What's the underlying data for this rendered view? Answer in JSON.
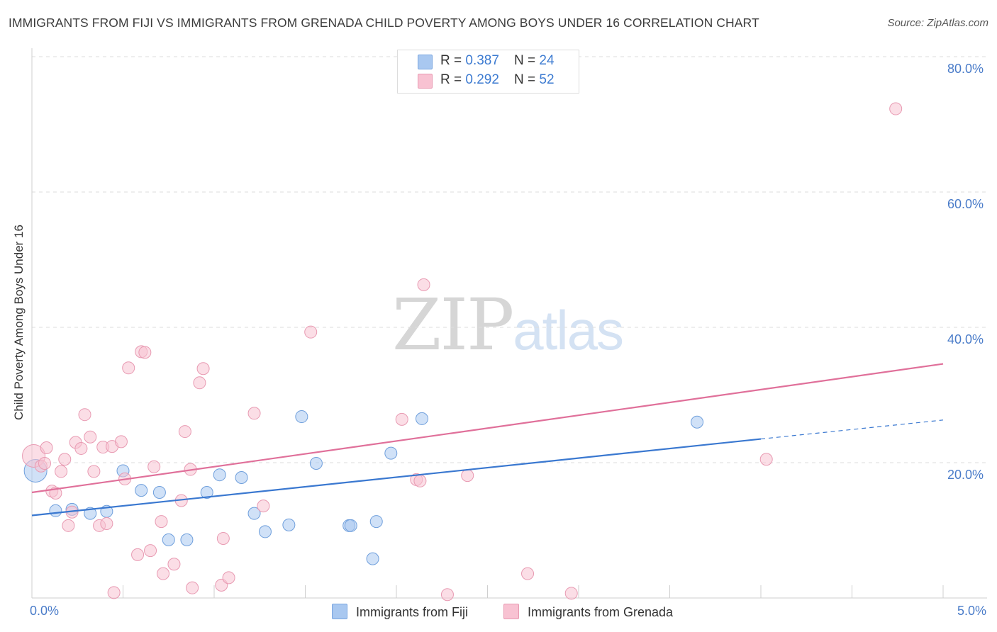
{
  "title": "IMMIGRANTS FROM FIJI VS IMMIGRANTS FROM GRENADA CHILD POVERTY AMONG BOYS UNDER 16 CORRELATION CHART",
  "source": "Source: ZipAtlas.com",
  "watermark": {
    "zip": "ZIP",
    "atlas": "atlas"
  },
  "legend_top": [
    {
      "r_label": "R = ",
      "r_value": "0.387",
      "n_label": "N = ",
      "n_value": "24",
      "color": "#a9c8f0",
      "border": "#7aa6e0"
    },
    {
      "r_label": "R = ",
      "r_value": "0.292",
      "n_label": "N = ",
      "n_value": "52",
      "color": "#f8c2d2",
      "border": "#e89ab2"
    }
  ],
  "legend_bottom": [
    {
      "label": "Immigrants from Fiji",
      "color": "#a9c8f0",
      "border": "#7aa6e0"
    },
    {
      "label": "Immigrants from Grenada",
      "color": "#f8c2d2",
      "border": "#e89ab2"
    }
  ],
  "chart_data": {
    "type": "scatter",
    "title": "IMMIGRANTS FROM FIJI VS IMMIGRANTS FROM GRENADA CHILD POVERTY AMONG BOYS UNDER 16 CORRELATION CHART",
    "xlabel": "",
    "ylabel": "Child Poverty Among Boys Under 16",
    "xlim": [
      0,
      5
    ],
    "ylim": [
      0,
      80
    ],
    "x_tick_labels": [
      "0.0%",
      "5.0%"
    ],
    "y_tick_labels": [
      "20.0%",
      "40.0%",
      "60.0%",
      "80.0%"
    ],
    "y_ticks": [
      20,
      40,
      60,
      80
    ],
    "grid": true,
    "series": [
      {
        "name": "Immigrants from Fiji",
        "color": "#a9c8f0",
        "stroke": "#6f9fdc",
        "line_color": "#3a78d0",
        "trend": {
          "x0": 0,
          "y0": 12.2,
          "x1": 4.0,
          "y1": 23.5,
          "dash_to_x": 5.0,
          "dash_to_y": 26.3
        },
        "points": [
          {
            "x": 0.02,
            "y": 18.8,
            "big": true
          },
          {
            "x": 0.13,
            "y": 12.9
          },
          {
            "x": 0.22,
            "y": 13.1
          },
          {
            "x": 0.32,
            "y": 12.5
          },
          {
            "x": 0.41,
            "y": 12.8
          },
          {
            "x": 0.5,
            "y": 18.8
          },
          {
            "x": 0.6,
            "y": 15.9
          },
          {
            "x": 0.7,
            "y": 15.6
          },
          {
            "x": 0.75,
            "y": 8.6
          },
          {
            "x": 0.85,
            "y": 8.6
          },
          {
            "x": 0.96,
            "y": 15.6
          },
          {
            "x": 1.03,
            "y": 18.2
          },
          {
            "x": 1.15,
            "y": 17.8
          },
          {
            "x": 1.22,
            "y": 12.5
          },
          {
            "x": 1.28,
            "y": 9.8
          },
          {
            "x": 1.41,
            "y": 10.8
          },
          {
            "x": 1.48,
            "y": 26.8
          },
          {
            "x": 1.56,
            "y": 19.9
          },
          {
            "x": 1.74,
            "y": 10.7
          },
          {
            "x": 1.75,
            "y": 10.7
          },
          {
            "x": 1.89,
            "y": 11.3
          },
          {
            "x": 1.87,
            "y": 5.8
          },
          {
            "x": 1.97,
            "y": 21.4
          },
          {
            "x": 2.14,
            "y": 26.5
          },
          {
            "x": 3.65,
            "y": 26.0
          }
        ]
      },
      {
        "name": "Immigrants from Grenada",
        "color": "#f8c2d2",
        "stroke": "#e89ab2",
        "line_color": "#e0709a",
        "trend": {
          "x0": 0,
          "y0": 15.6,
          "x1": 5.0,
          "y1": 34.6
        },
        "points": [
          {
            "x": 0.01,
            "y": 21.0,
            "big": true
          },
          {
            "x": 0.05,
            "y": 19.5
          },
          {
            "x": 0.07,
            "y": 19.9
          },
          {
            "x": 0.08,
            "y": 22.2
          },
          {
            "x": 0.11,
            "y": 15.8
          },
          {
            "x": 0.13,
            "y": 15.5
          },
          {
            "x": 0.16,
            "y": 18.7
          },
          {
            "x": 0.18,
            "y": 20.5
          },
          {
            "x": 0.2,
            "y": 10.7
          },
          {
            "x": 0.22,
            "y": 12.7
          },
          {
            "x": 0.24,
            "y": 23.0
          },
          {
            "x": 0.27,
            "y": 22.1
          },
          {
            "x": 0.29,
            "y": 27.1
          },
          {
            "x": 0.32,
            "y": 23.8
          },
          {
            "x": 0.34,
            "y": 18.7
          },
          {
            "x": 0.37,
            "y": 10.7
          },
          {
            "x": 0.39,
            "y": 22.3
          },
          {
            "x": 0.41,
            "y": 11.0
          },
          {
            "x": 0.44,
            "y": 22.4
          },
          {
            "x": 0.45,
            "y": 0.8
          },
          {
            "x": 0.49,
            "y": 23.1
          },
          {
            "x": 0.51,
            "y": 17.6
          },
          {
            "x": 0.53,
            "y": 34.0
          },
          {
            "x": 0.58,
            "y": 6.4
          },
          {
            "x": 0.6,
            "y": 36.4
          },
          {
            "x": 0.62,
            "y": 36.3
          },
          {
            "x": 0.65,
            "y": 7.0
          },
          {
            "x": 0.67,
            "y": 19.4
          },
          {
            "x": 0.71,
            "y": 11.3
          },
          {
            "x": 0.72,
            "y": 3.6
          },
          {
            "x": 0.78,
            "y": 5.0
          },
          {
            "x": 0.82,
            "y": 14.4
          },
          {
            "x": 0.84,
            "y": 24.6
          },
          {
            "x": 0.87,
            "y": 19.0
          },
          {
            "x": 0.88,
            "y": 1.5
          },
          {
            "x": 0.92,
            "y": 31.8
          },
          {
            "x": 0.94,
            "y": 33.9
          },
          {
            "x": 1.04,
            "y": 1.9
          },
          {
            "x": 1.05,
            "y": 8.8
          },
          {
            "x": 1.08,
            "y": 3.0
          },
          {
            "x": 1.22,
            "y": 27.3
          },
          {
            "x": 1.27,
            "y": 13.6
          },
          {
            "x": 1.53,
            "y": 39.3
          },
          {
            "x": 2.03,
            "y": 26.4
          },
          {
            "x": 2.11,
            "y": 17.5
          },
          {
            "x": 2.13,
            "y": 17.3
          },
          {
            "x": 2.15,
            "y": 46.3
          },
          {
            "x": 2.39,
            "y": 18.1
          },
          {
            "x": 2.28,
            "y": 0.5
          },
          {
            "x": 2.72,
            "y": 3.6
          },
          {
            "x": 2.96,
            "y": 0.7
          },
          {
            "x": 4.03,
            "y": 20.5
          },
          {
            "x": 4.74,
            "y": 72.3
          }
        ]
      }
    ]
  }
}
